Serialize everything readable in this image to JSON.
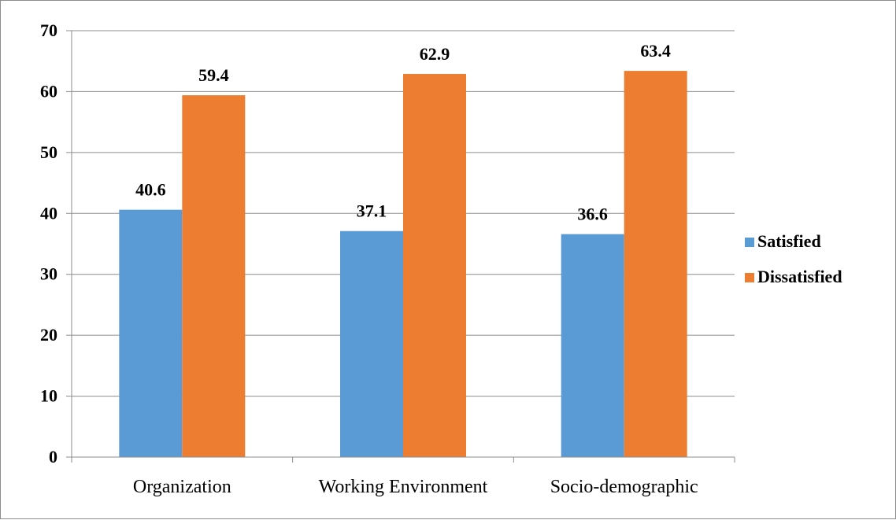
{
  "chart_data": {
    "type": "bar",
    "title": "",
    "xlabel": "",
    "ylabel": "",
    "categories": [
      "Organization",
      "Working Environment",
      "Socio-demographic"
    ],
    "series": [
      {
        "name": "Satisfied",
        "values": [
          40.6,
          37.1,
          36.6
        ],
        "color": "#5b9bd5"
      },
      {
        "name": "Dissatisfied",
        "values": [
          59.4,
          62.9,
          63.4
        ],
        "color": "#ed7d31"
      }
    ],
    "ylim": [
      0,
      70
    ],
    "yticks": [
      0,
      10,
      20,
      30,
      40,
      50,
      60,
      70
    ],
    "grid": true,
    "legend_position": "right",
    "data_labels": true
  }
}
